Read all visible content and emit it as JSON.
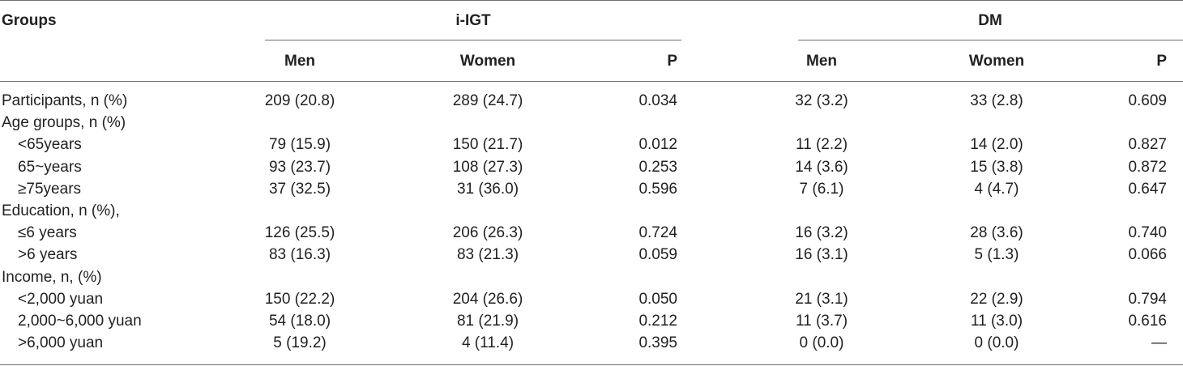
{
  "table": {
    "groups_label": "Groups",
    "group_headers": [
      "i-IGT",
      "DM"
    ],
    "sub_headers": [
      "Men",
      "Women",
      "P",
      "Men",
      "Women",
      "P"
    ],
    "rows": [
      {
        "label": "Participants, n (%)",
        "indent": false,
        "values": [
          "209 (20.8)",
          "289 (24.7)",
          "0.034",
          "32 (3.2)",
          "33 (2.8)",
          "0.609"
        ]
      },
      {
        "label": "Age groups, n (%)",
        "indent": false,
        "values": [
          "",
          "",
          "",
          "",
          "",
          ""
        ]
      },
      {
        "label": "<65years",
        "indent": true,
        "values": [
          "79 (15.9)",
          "150 (21.7)",
          "0.012",
          "11 (2.2)",
          "14 (2.0)",
          "0.827"
        ]
      },
      {
        "label": "65~years",
        "indent": true,
        "values": [
          "93 (23.7)",
          "108 (27.3)",
          "0.253",
          "14 (3.6)",
          "15 (3.8)",
          "0.872"
        ]
      },
      {
        "label": "≥75years",
        "indent": true,
        "values": [
          "37 (32.5)",
          "31 (36.0)",
          "0.596",
          "7 (6.1)",
          "4 (4.7)",
          "0.647"
        ]
      },
      {
        "label": "Education, n (%),",
        "indent": false,
        "values": [
          "",
          "",
          "",
          "",
          "",
          ""
        ]
      },
      {
        "label": "≤6 years",
        "indent": true,
        "values": [
          "126 (25.5)",
          "206 (26.3)",
          "0.724",
          "16 (3.2)",
          "28 (3.6)",
          "0.740"
        ]
      },
      {
        "label": ">6 years",
        "indent": true,
        "values": [
          "83 (16.3)",
          "83 (21.3)",
          "0.059",
          "16 (3.1)",
          "5 (1.3)",
          "0.066"
        ]
      },
      {
        "label": "Income, n, (%)",
        "indent": false,
        "values": [
          "",
          "",
          "",
          "",
          "",
          ""
        ]
      },
      {
        "label": "<2,000 yuan",
        "indent": true,
        "values": [
          "150 (22.2)",
          "204 (26.6)",
          "0.050",
          "21 (3.1)",
          "22 (2.9)",
          "0.794"
        ]
      },
      {
        "label": "2,000~6,000 yuan",
        "indent": true,
        "values": [
          "54 (18.0)",
          "81 (21.9)",
          "0.212",
          "11 (3.7)",
          "11 (3.0)",
          "0.616"
        ]
      },
      {
        "label": ">6,000 yuan",
        "indent": true,
        "values": [
          "5 (19.2)",
          "4 (11.4)",
          "0.395",
          "0 (0.0)",
          "0 (0.0)",
          "—"
        ]
      }
    ]
  }
}
